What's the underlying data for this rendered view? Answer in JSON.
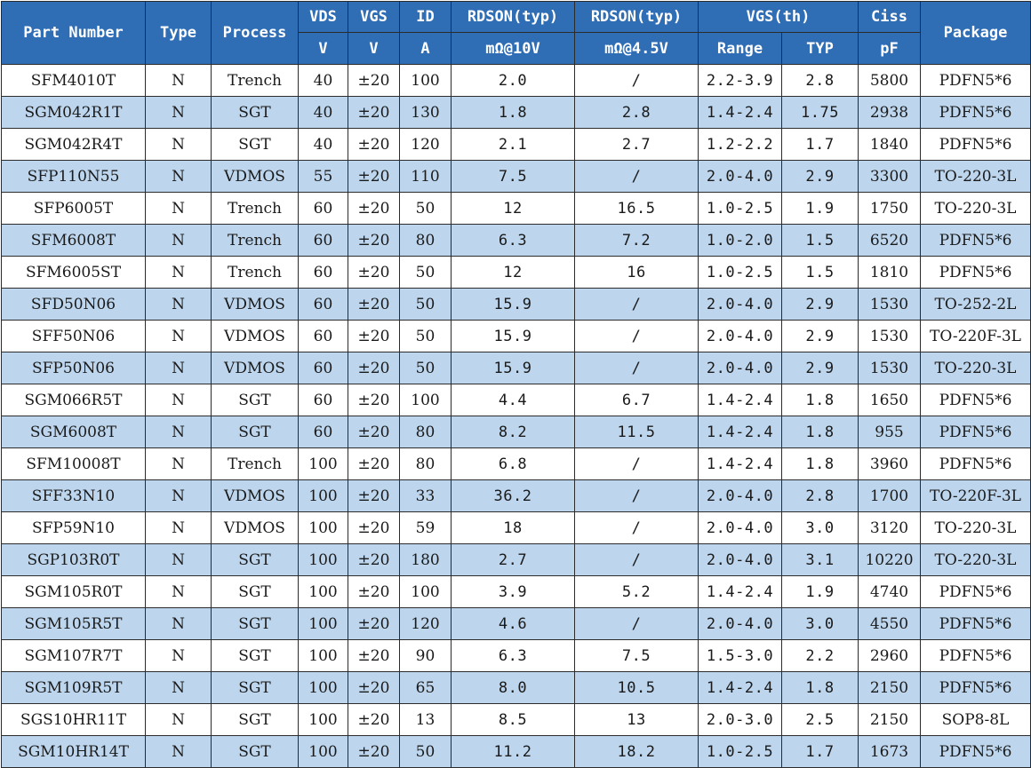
{
  "header": {
    "part_number": "Part Number",
    "type": "Type",
    "process": "Process",
    "vds": "VDS",
    "vds_unit": "V",
    "vgs": "VGS",
    "vgs_unit": "V",
    "id": "ID",
    "id_unit": "A",
    "rdson10": "RDSON(typ)",
    "rdson10_unit": "mΩ@10V",
    "rdson45": "RDSON(typ)",
    "rdson45_unit": "mΩ@4.5V",
    "vgsth": "VGS(th)",
    "vgsth_range": "Range",
    "vgsth_typ": "TYP",
    "ciss": "Ciss",
    "ciss_unit": "pF",
    "package": "Package"
  },
  "rows": [
    {
      "part": "SFM4010T",
      "type": "N",
      "process": "Trench",
      "vds": "40",
      "vgs": "±20",
      "id": "100",
      "rdson10": "2.0",
      "rdson45": "/",
      "range": "2.2-3.9",
      "typ": "2.8",
      "ciss": "5800",
      "package": "PDFN5*6"
    },
    {
      "part": "SGM042R1T",
      "type": "N",
      "process": "SGT",
      "vds": "40",
      "vgs": "±20",
      "id": "130",
      "rdson10": "1.8",
      "rdson45": "2.8",
      "range": "1.4-2.4",
      "typ": "1.75",
      "ciss": "2938",
      "package": "PDFN5*6"
    },
    {
      "part": "SGM042R4T",
      "type": "N",
      "process": "SGT",
      "vds": "40",
      "vgs": "±20",
      "id": "120",
      "rdson10": "2.1",
      "rdson45": "2.7",
      "range": "1.2-2.2",
      "typ": "1.7",
      "ciss": "1840",
      "package": "PDFN5*6"
    },
    {
      "part": "SFP110N55",
      "type": "N",
      "process": "VDMOS",
      "vds": "55",
      "vgs": "±20",
      "id": "110",
      "rdson10": "7.5",
      "rdson45": "/",
      "range": "2.0-4.0",
      "typ": "2.9",
      "ciss": "3300",
      "package": "TO-220-3L"
    },
    {
      "part": "SFP6005T",
      "type": "N",
      "process": "Trench",
      "vds": "60",
      "vgs": "±20",
      "id": "50",
      "rdson10": "12",
      "rdson45": "16.5",
      "range": "1.0-2.5",
      "typ": "1.9",
      "ciss": "1750",
      "package": "TO-220-3L"
    },
    {
      "part": "SFM6008T",
      "type": "N",
      "process": "Trench",
      "vds": "60",
      "vgs": "±20",
      "id": "80",
      "rdson10": "6.3",
      "rdson45": "7.2",
      "range": "1.0-2.0",
      "typ": "1.5",
      "ciss": "6520",
      "package": "PDFN5*6"
    },
    {
      "part": "SFM6005ST",
      "type": "N",
      "process": "Trench",
      "vds": "60",
      "vgs": "±20",
      "id": "50",
      "rdson10": "12",
      "rdson45": "16",
      "range": "1.0-2.5",
      "typ": "1.5",
      "ciss": "1810",
      "package": "PDFN5*6"
    },
    {
      "part": "SFD50N06",
      "type": "N",
      "process": "VDMOS",
      "vds": "60",
      "vgs": "±20",
      "id": "50",
      "rdson10": "15.9",
      "rdson45": "/",
      "range": "2.0-4.0",
      "typ": "2.9",
      "ciss": "1530",
      "package": "TO-252-2L"
    },
    {
      "part": "SFF50N06",
      "type": "N",
      "process": "VDMOS",
      "vds": "60",
      "vgs": "±20",
      "id": "50",
      "rdson10": "15.9",
      "rdson45": "/",
      "range": "2.0-4.0",
      "typ": "2.9",
      "ciss": "1530",
      "package": "TO-220F-3L"
    },
    {
      "part": "SFP50N06",
      "type": "N",
      "process": "VDMOS",
      "vds": "60",
      "vgs": "±20",
      "id": "50",
      "rdson10": "15.9",
      "rdson45": "/",
      "range": "2.0-4.0",
      "typ": "2.9",
      "ciss": "1530",
      "package": "TO-220-3L"
    },
    {
      "part": "SGM066R5T",
      "type": "N",
      "process": "SGT",
      "vds": "60",
      "vgs": "±20",
      "id": "100",
      "rdson10": "4.4",
      "rdson45": "6.7",
      "range": "1.4-2.4",
      "typ": "1.8",
      "ciss": "1650",
      "package": "PDFN5*6"
    },
    {
      "part": "SGM6008T",
      "type": "N",
      "process": "SGT",
      "vds": "60",
      "vgs": "±20",
      "id": "80",
      "rdson10": "8.2",
      "rdson45": "11.5",
      "range": "1.4-2.4",
      "typ": "1.8",
      "ciss": "955",
      "package": "PDFN5*6"
    },
    {
      "part": "SFM10008T",
      "type": "N",
      "process": "Trench",
      "vds": "100",
      "vgs": "±20",
      "id": "80",
      "rdson10": "6.8",
      "rdson45": "/",
      "range": "1.4-2.4",
      "typ": "1.8",
      "ciss": "3960",
      "package": "PDFN5*6"
    },
    {
      "part": "SFF33N10",
      "type": "N",
      "process": "VDMOS",
      "vds": "100",
      "vgs": "±20",
      "id": "33",
      "rdson10": "36.2",
      "rdson45": "/",
      "range": "2.0-4.0",
      "typ": "2.8",
      "ciss": "1700",
      "package": "TO-220F-3L"
    },
    {
      "part": "SFP59N10",
      "type": "N",
      "process": "VDMOS",
      "vds": "100",
      "vgs": "±20",
      "id": "59",
      "rdson10": "18",
      "rdson45": "/",
      "range": "2.0-4.0",
      "typ": "3.0",
      "ciss": "3120",
      "package": "TO-220-3L"
    },
    {
      "part": "SGP103R0T",
      "type": "N",
      "process": "SGT",
      "vds": "100",
      "vgs": "±20",
      "id": "180",
      "rdson10": "2.7",
      "rdson45": "/",
      "range": "2.0-4.0",
      "typ": "3.1",
      "ciss": "10220",
      "package": "TO-220-3L"
    },
    {
      "part": "SGM105R0T",
      "type": "N",
      "process": "SGT",
      "vds": "100",
      "vgs": "±20",
      "id": "100",
      "rdson10": "3.9",
      "rdson45": "5.2",
      "range": "1.4-2.4",
      "typ": "1.9",
      "ciss": "4740",
      "package": "PDFN5*6"
    },
    {
      "part": "SGM105R5T",
      "type": "N",
      "process": "SGT",
      "vds": "100",
      "vgs": "±20",
      "id": "120",
      "rdson10": "4.6",
      "rdson45": "/",
      "range": "2.0-4.0",
      "typ": "3.0",
      "ciss": "4550",
      "package": "PDFN5*6"
    },
    {
      "part": "SGM107R7T",
      "type": "N",
      "process": "SGT",
      "vds": "100",
      "vgs": "±20",
      "id": "90",
      "rdson10": "6.3",
      "rdson45": "7.5",
      "range": "1.5-3.0",
      "typ": "2.2",
      "ciss": "2960",
      "package": "PDFN5*6"
    },
    {
      "part": "SGM109R5T",
      "type": "N",
      "process": "SGT",
      "vds": "100",
      "vgs": "±20",
      "id": "65",
      "rdson10": "8.0",
      "rdson45": "10.5",
      "range": "1.4-2.4",
      "typ": "1.8",
      "ciss": "2150",
      "package": "PDFN5*6"
    },
    {
      "part": "SGS10HR11T",
      "type": "N",
      "process": "SGT",
      "vds": "100",
      "vgs": "±20",
      "id": "13",
      "rdson10": "8.5",
      "rdson45": "13",
      "range": "2.0-3.0",
      "typ": "2.5",
      "ciss": "2150",
      "package": "SOP8-8L"
    },
    {
      "part": "SGM10HR14T",
      "type": "N",
      "process": "SGT",
      "vds": "100",
      "vgs": "±20",
      "id": "50",
      "rdson10": "11.2",
      "rdson45": "18.2",
      "range": "1.0-2.5",
      "typ": "1.7",
      "ciss": "1673",
      "package": "PDFN5*6"
    }
  ]
}
